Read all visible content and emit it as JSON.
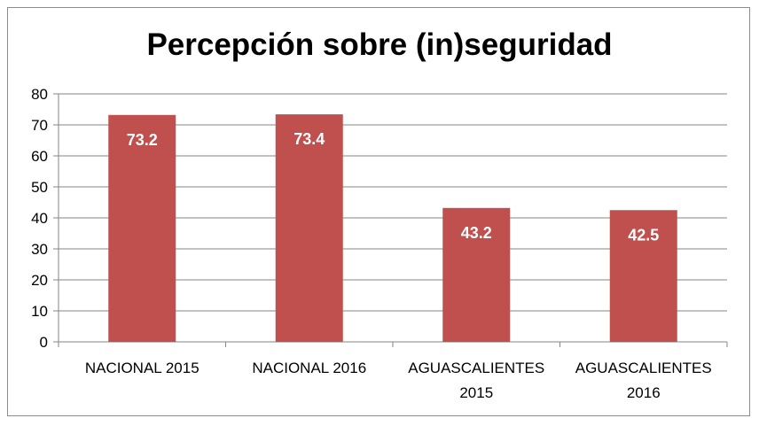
{
  "chart_data": {
    "type": "bar",
    "title": "Percepción sobre (in)seguridad",
    "categories": [
      [
        "NACIONAL 2015"
      ],
      [
        "NACIONAL 2016"
      ],
      [
        "AGUASCALIENTES",
        "2015"
      ],
      [
        "AGUASCALIENTES",
        "2016"
      ]
    ],
    "values": [
      73.2,
      73.4,
      43.2,
      42.5
    ],
    "data_labels": [
      "73.2",
      "73.4",
      "43.2",
      "42.5"
    ],
    "yticks": [
      "0",
      "10",
      "20",
      "30",
      "40",
      "50",
      "60",
      "70",
      "80"
    ],
    "ylim": [
      0,
      80
    ],
    "grid": true,
    "legend": "none",
    "xlabel": "",
    "ylabel": "",
    "colors": {
      "bar": "#C0504D",
      "grid": "#868686",
      "axis": "#868686",
      "border": "#8c8c8c"
    }
  }
}
